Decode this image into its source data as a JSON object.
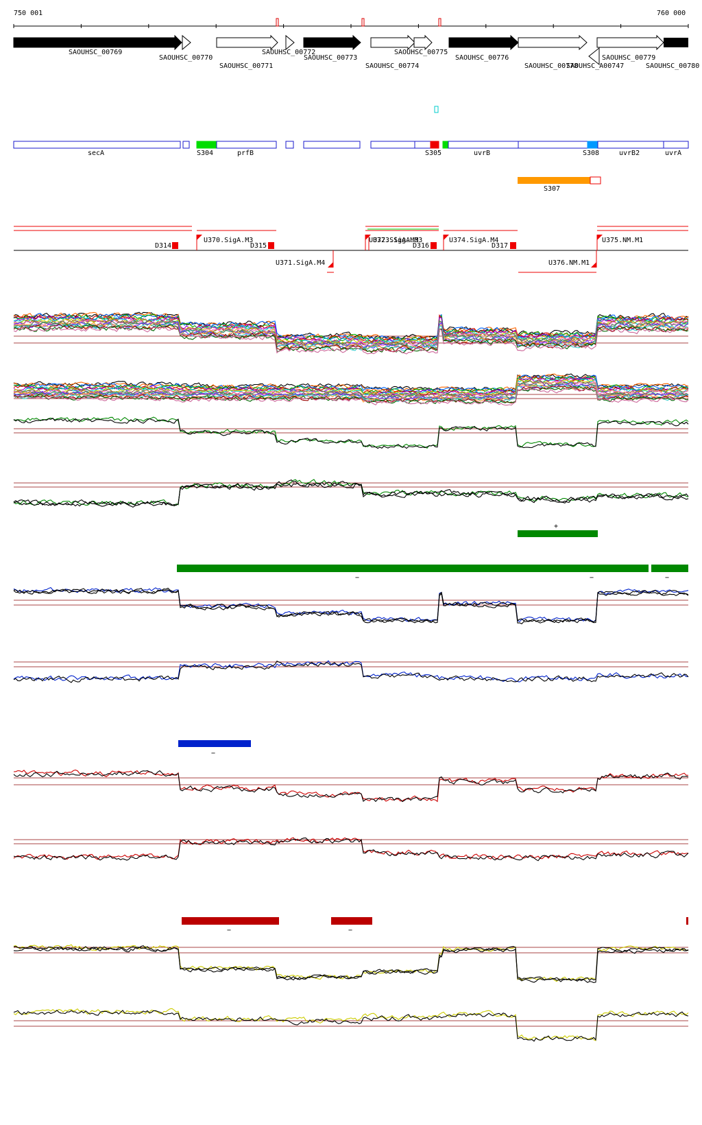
{
  "axis": {
    "start_label": "750 001",
    "end_label": "760 000",
    "start": 750001,
    "end": 760000
  },
  "genes_top": [
    {
      "name": "SAOUHSC_00769",
      "strand": "+",
      "fill": "black",
      "row": 0
    },
    {
      "name": "SAOUHSC_00770",
      "strand": "+",
      "fill": "white",
      "row": 1
    },
    {
      "name": "SAOUHSC_00771",
      "strand": "+",
      "fill": "white",
      "row": 2
    },
    {
      "name": "SAOUHSC_00772",
      "strand": "+",
      "fill": "white",
      "row": 0
    },
    {
      "name": "SAOUHSC_00773",
      "strand": "+",
      "fill": "black",
      "row": 1
    },
    {
      "name": "SAOUHSC_00774",
      "strand": "+",
      "fill": "white",
      "row": 2
    },
    {
      "name": "SAOUHSC_00775",
      "strand": "+",
      "fill": "white",
      "row": 0
    },
    {
      "name": "SAOUHSC_00776",
      "strand": "+",
      "fill": "black",
      "row": 1
    },
    {
      "name": "SAOUHSC_00778",
      "strand": "+",
      "fill": "white",
      "row": 2
    },
    {
      "name": "SAOUHSC_A00747",
      "strand": "-",
      "fill": "white",
      "row": 2
    },
    {
      "name": "SAOUHSC_00779",
      "strand": "+",
      "fill": "white",
      "row": 1
    },
    {
      "name": "SAOUHSC_00780",
      "strand": "+",
      "fill": "black",
      "row": 2
    }
  ],
  "operons": [
    {
      "name": "secA"
    },
    {
      "name": "prfB"
    },
    {
      "name": "uvrB"
    },
    {
      "name": "uvrB2"
    },
    {
      "name": "uvrA"
    }
  ],
  "segments": [
    {
      "name": "S304",
      "color": "#00dd00"
    },
    {
      "name": "S305",
      "color": "#ee0000"
    },
    {
      "name": "S308",
      "color": "#0099ff"
    },
    {
      "name": "S307",
      "color": "#ff9900"
    }
  ],
  "tss_upper": [
    {
      "name": "U370.SigA.M3"
    },
    {
      "name": "U372.SigA.M3"
    },
    {
      "name": "U373.SigA.M3"
    },
    {
      "name": "U374.SigA.M4"
    },
    {
      "name": "U375.NM.M1"
    }
  ],
  "tss_lower": [
    {
      "name": "U371.SigA.M4"
    },
    {
      "name": "U376.NM.M1"
    }
  ],
  "terminators": [
    {
      "name": "D314"
    },
    {
      "name": "D315"
    },
    {
      "name": "D316"
    },
    {
      "name": "D317"
    }
  ],
  "condition_bars": [
    {
      "color": "#008800",
      "sign": "+"
    },
    {
      "color": "#008800",
      "sign": "−"
    },
    {
      "color": "#008800",
      "sign": "−"
    },
    {
      "color": "#008800",
      "sign": "−"
    },
    {
      "color": "#0022cc",
      "sign": "−"
    },
    {
      "color": "#bb0000",
      "sign": "−"
    },
    {
      "color": "#bb0000",
      "sign": "−"
    }
  ],
  "track_colors": {
    "green": "#008800",
    "blue": "#0022cc",
    "red": "#cc0000",
    "yellow": "#cccc00",
    "threshold": "#aa4444"
  }
}
